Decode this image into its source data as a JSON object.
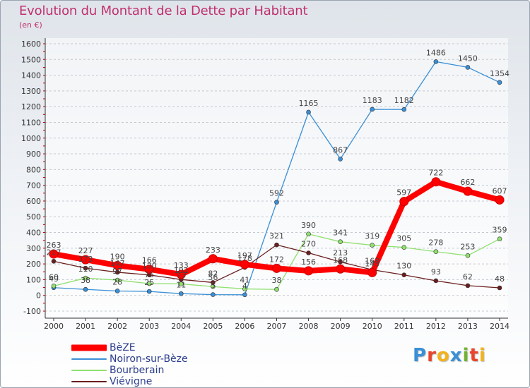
{
  "title": "Evolution du Montant de la Dette par Habitant",
  "subtitle": "(en €)",
  "logo_text": "Proxiti",
  "logo_colors": [
    "#3a8fd6",
    "#e8452c",
    "#f2b21b",
    "#3a8fd6",
    "#72b431",
    "#e8452c",
    "#f2b21b"
  ],
  "chart_data": {
    "type": "line",
    "title": "Evolution du Montant de la Dette par Habitant",
    "ylabel": "(en €)",
    "xlabel": "",
    "x": [
      "2000",
      "2001",
      "2002",
      "2003",
      "2004",
      "2005",
      "2006",
      "2007",
      "2008",
      "2009",
      "2010",
      "2011",
      "2012",
      "2013",
      "2014"
    ],
    "ylim": [
      -100,
      1600
    ],
    "yticks": [
      "-100",
      "0",
      "100",
      "200",
      "300",
      "400",
      "500",
      "600",
      "700",
      "800",
      "900",
      "1000",
      "1100",
      "1200",
      "1300",
      "1400",
      "1500",
      "1600"
    ],
    "grid": "horizontal dashed",
    "legend_position": "bottom-left",
    "series": [
      {
        "name": "BèZE",
        "color": "#ff0000",
        "values": [
          263,
          227,
          190,
          166,
          133,
          233,
          197,
          172,
          156,
          168,
          145,
          597,
          722,
          662,
          607
        ]
      },
      {
        "name": "Noiron-sur-Bèze",
        "color": "#3a8fd6",
        "values": [
          49,
          38,
          28,
          25,
          11,
          5,
          4,
          592,
          1165,
          867,
          1183,
          1182,
          1486,
          1450,
          1354
        ]
      },
      {
        "name": "Bourberain",
        "color": "#90e070",
        "values": [
          60,
          110,
          97,
          75,
          73,
          56,
          41,
          38,
          390,
          341,
          319,
          305,
          278,
          253,
          359
        ]
      },
      {
        "name": "Viévigne",
        "color": "#6b1e1e",
        "values": [
          217,
          173,
          147,
          130,
          101,
          82,
          178,
          321,
          270,
          213,
          163,
          130,
          93,
          62,
          48
        ]
      }
    ],
    "data_labels": [
      [
        "263",
        "227",
        "190",
        "166",
        "133",
        "233",
        "197",
        "172",
        "156",
        "168",
        "145",
        "597",
        "722",
        "662",
        "607"
      ],
      [
        "49",
        "38",
        "28",
        "25",
        "11",
        "5",
        "4",
        "592",
        "1165",
        "867",
        "1183",
        "1182",
        "1486",
        "1450",
        "1354"
      ],
      [
        "60",
        "110",
        "97",
        "75",
        "73",
        "56",
        "41",
        "38",
        "390",
        "341",
        "319",
        "305",
        "278",
        "253",
        "359"
      ],
      [
        "217",
        "173",
        "147",
        "130",
        "101",
        "82",
        "178",
        "321",
        "270",
        "213",
        "163",
        "130",
        "93",
        "62",
        "48"
      ]
    ]
  }
}
